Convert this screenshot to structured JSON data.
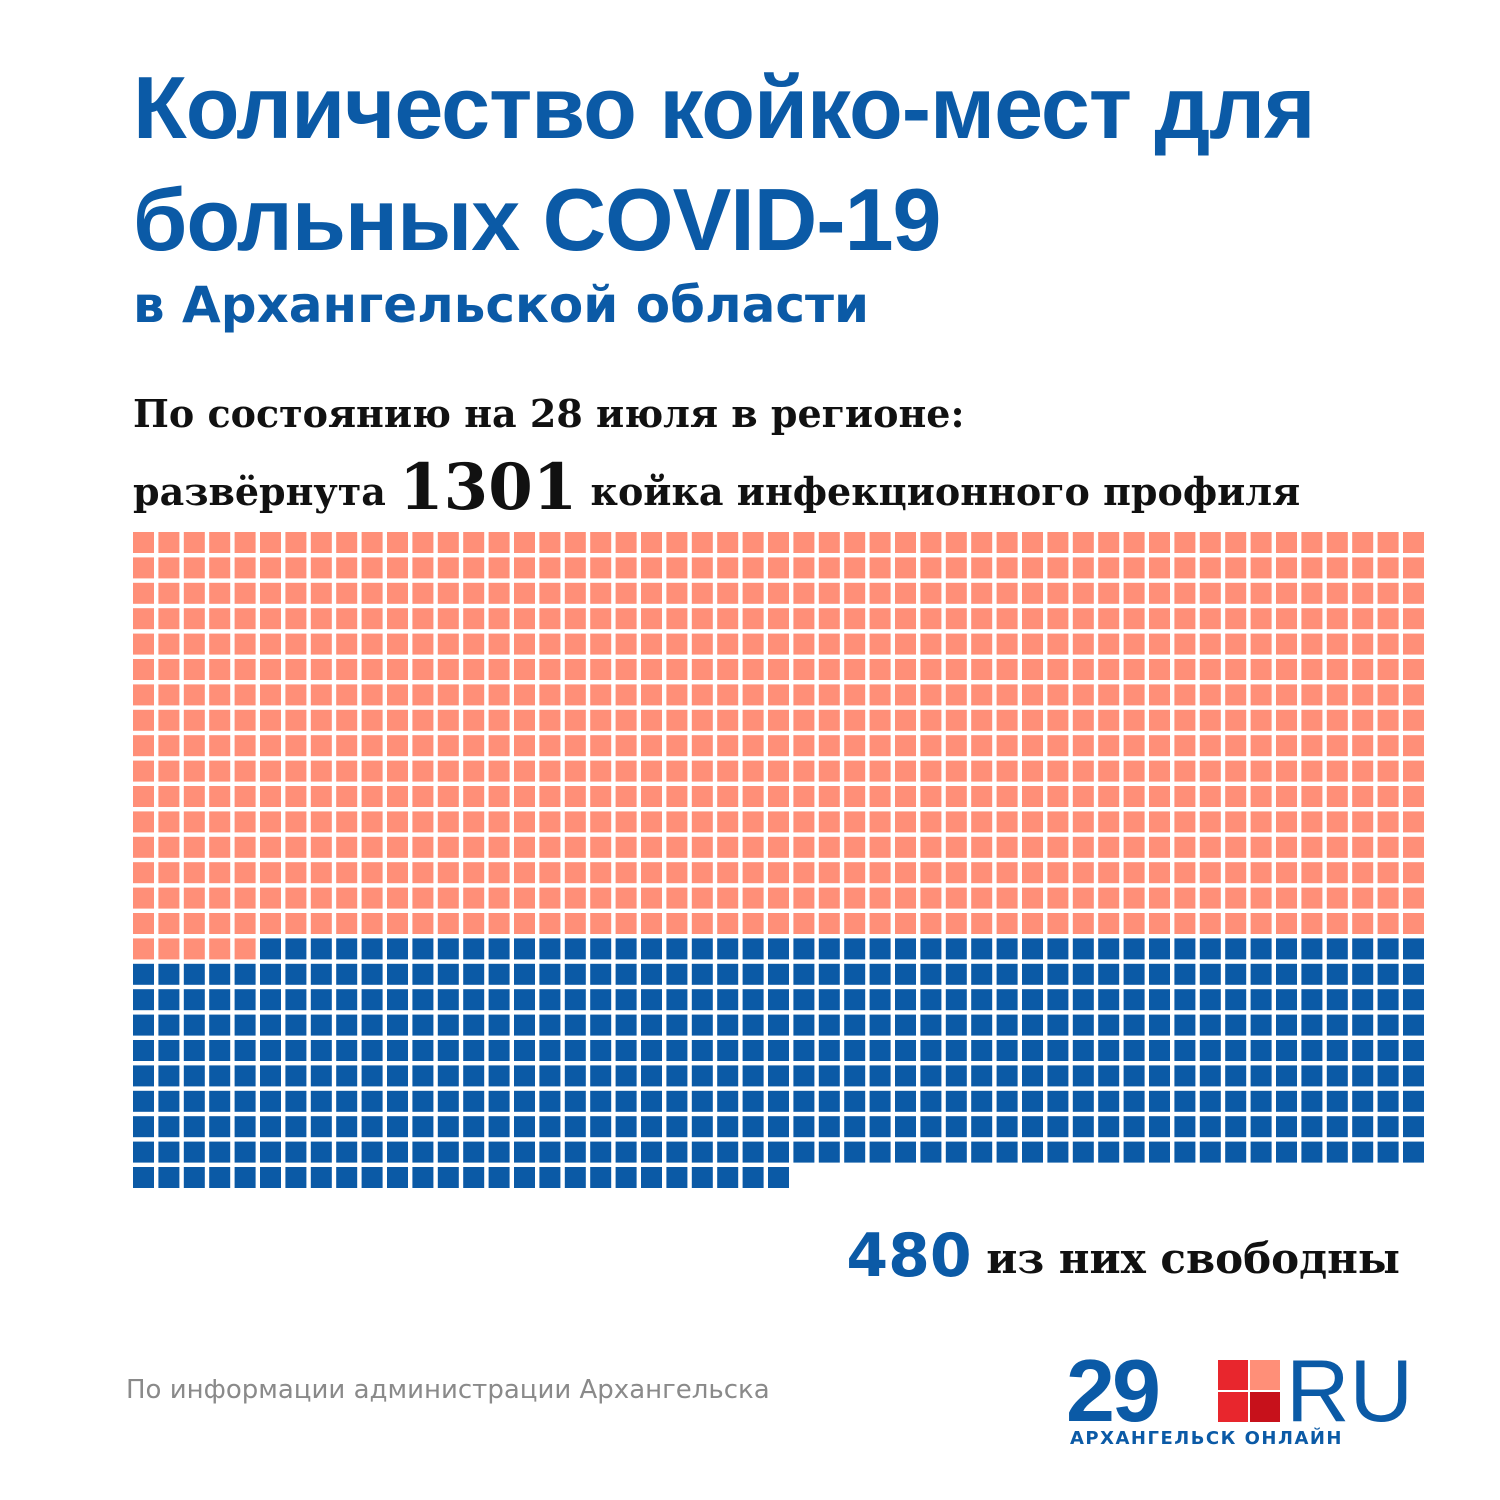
{
  "header": {
    "title": "Количество койко-мест для больных COVID-19",
    "subtitle": "в Архангельской области"
  },
  "summary": {
    "line1": "По состоянию на 28 июля в регионе:",
    "line2_prefix": "развёрнута",
    "total_beds": "1301",
    "line2_suffix": "койка инфекционного профиля"
  },
  "free_label": {
    "number": "480",
    "text": "из них свободны"
  },
  "footer": {
    "source": "По информации администрации Архангельска",
    "logo": {
      "number": "29",
      "ru": "RU",
      "tagline": "АРХАНГЕЛЬСК ОНЛАЙН"
    }
  },
  "colors": {
    "occupied": "#ff8f78",
    "free": "#0b5aa6",
    "accent": "#0b5aa6",
    "logo_red": "#e8262d",
    "logo_light": "#ff8f78"
  },
  "chart_data": {
    "type": "waffle",
    "unit": "койка",
    "total": 1301,
    "series": [
      {
        "name": "",
        "value": 821,
        "color": "#ff8f78"
      },
      {
        "name": "из них свободны",
        "value": 480,
        "color": "#0b5aa6"
      }
    ]
  }
}
